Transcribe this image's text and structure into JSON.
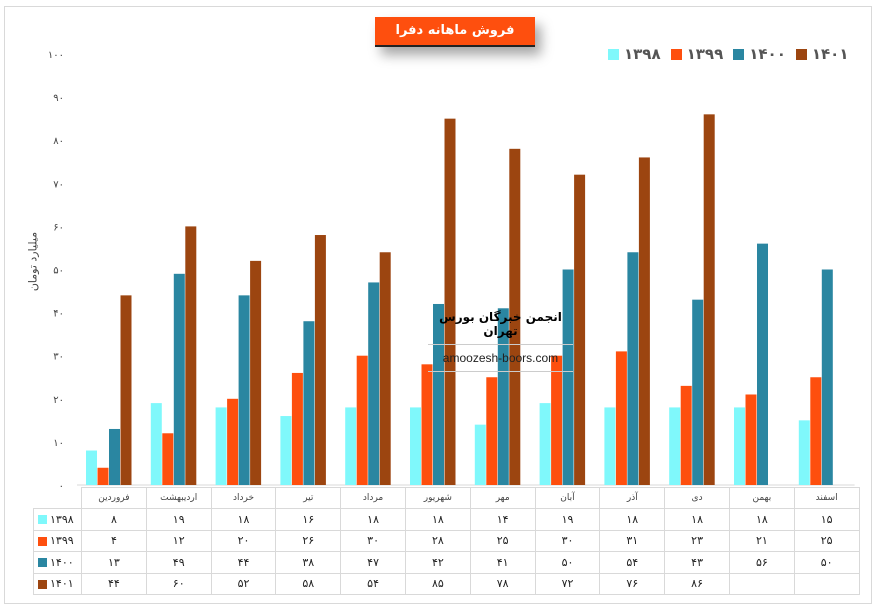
{
  "chart_data": {
    "type": "bar",
    "title": "فروش ماهانه دفرا",
    "ylabel": "میلیارد تومان",
    "xlabel": "",
    "ylim": [
      0,
      100
    ],
    "yticks": [
      "۰",
      "۱۰",
      "۲۰",
      "۳۰",
      "۴۰",
      "۵۰",
      "۶۰",
      "۷۰",
      "۸۰",
      "۹۰",
      "۱۰۰"
    ],
    "ytick_values": [
      0,
      10,
      20,
      30,
      40,
      50,
      60,
      70,
      80,
      90,
      100
    ],
    "grid": false,
    "legend_position": "top-right",
    "categories": [
      "فروردین",
      "اردیبهشت",
      "خرداد",
      "تیر",
      "مرداد",
      "شهریور",
      "مهر",
      "آبان",
      "آذر",
      "دی",
      "بهمن",
      "اسفند"
    ],
    "series": [
      {
        "name": "۱۳۹۸",
        "color": "#7ff8fb",
        "values": [
          8,
          19,
          18,
          16,
          18,
          18,
          14,
          19,
          18,
          18,
          18,
          15
        ],
        "labels": [
          "۸",
          "۱۹",
          "۱۸",
          "۱۶",
          "۱۸",
          "۱۸",
          "۱۴",
          "۱۹",
          "۱۸",
          "۱۸",
          "۱۸",
          "۱۵"
        ]
      },
      {
        "name": "۱۳۹۹",
        "color": "#fe4f0e",
        "values": [
          4,
          12,
          20,
          26,
          30,
          28,
          25,
          30,
          31,
          23,
          21,
          25
        ],
        "labels": [
          "۴",
          "۱۲",
          "۲۰",
          "۲۶",
          "۳۰",
          "۲۸",
          "۲۵",
          "۳۰",
          "۳۱",
          "۲۳",
          "۲۱",
          "۲۵"
        ]
      },
      {
        "name": "۱۴۰۰",
        "color": "#2a86a1",
        "values": [
          13,
          49,
          44,
          38,
          47,
          42,
          41,
          50,
          54,
          43,
          56,
          50
        ],
        "labels": [
          "۱۳",
          "۴۹",
          "۴۴",
          "۳۸",
          "۴۷",
          "۴۲",
          "۴۱",
          "۵۰",
          "۵۴",
          "۴۳",
          "۵۶",
          "۵۰"
        ]
      },
      {
        "name": "۱۴۰۱",
        "color": "#9c4510",
        "values": [
          44,
          60,
          52,
          58,
          54,
          85,
          78,
          72,
          76,
          86,
          null,
          null
        ],
        "labels": [
          "۴۴",
          "۶۰",
          "۵۲",
          "۵۸",
          "۵۴",
          "۸۵",
          "۷۸",
          "۷۲",
          "۷۶",
          "۸۶",
          "",
          ""
        ]
      }
    ]
  },
  "watermark": {
    "name": "انجمن خبرگان بورس تهران",
    "site": "amoozesh-boors.com"
  }
}
